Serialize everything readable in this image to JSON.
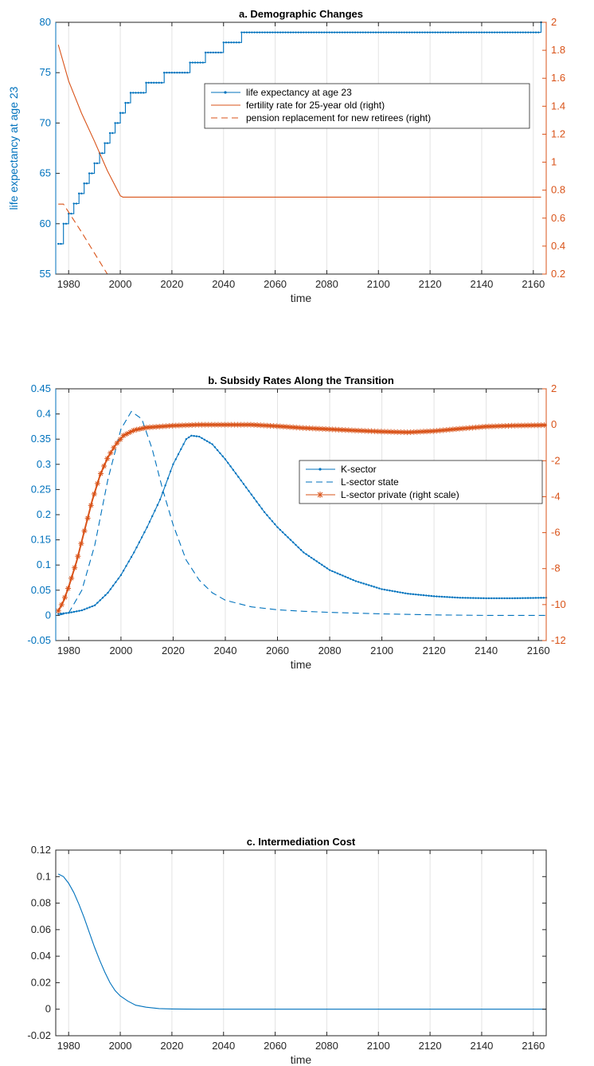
{
  "colors": {
    "blue": "#0072BD",
    "orange": "#D95319",
    "grid": "#e3e3e3",
    "axis": "#262626"
  },
  "chart_data": [
    {
      "type": "line",
      "title": "a. Demographic Changes",
      "xlabel": "time",
      "ylabel": "life expectancy at age 23",
      "ylabel_right": "",
      "xlim": [
        1975,
        2165
      ],
      "ylim": [
        55,
        80
      ],
      "ylim_right": [
        0.2,
        2
      ],
      "xticks": [
        1980,
        2000,
        2020,
        2040,
        2060,
        2080,
        2100,
        2120,
        2140,
        2160
      ],
      "yticks": [
        55,
        60,
        65,
        70,
        75,
        80
      ],
      "yticks_right": [
        0.2,
        0.4,
        0.6,
        0.8,
        1,
        1.2,
        1.4,
        1.6,
        1.8,
        2
      ],
      "grid": "x",
      "legend": "top-right",
      "series": [
        {
          "name": "life expectancy at age 23",
          "axis": "left",
          "style": "solid-dot",
          "color": "blue",
          "x": [
            1976,
            1978,
            1980,
            1982,
            1984,
            1986,
            1988,
            1990,
            1992,
            1994,
            1996,
            1998,
            2000,
            2002,
            2004,
            2010,
            2017,
            2027,
            2033,
            2040,
            2047,
            2163
          ],
          "y": [
            58,
            60,
            61,
            62,
            63,
            64,
            65,
            66,
            67,
            68,
            69,
            70,
            71,
            72,
            73,
            74,
            75,
            76,
            77,
            78,
            79,
            80
          ],
          "step": true
        },
        {
          "name": "fertility rate for 25-year old (right)",
          "axis": "right",
          "style": "solid",
          "color": "orange",
          "x": [
            1976,
            1980,
            1985,
            1990,
            1995,
            2000,
            2001,
            2163
          ],
          "y": [
            1.84,
            1.58,
            1.35,
            1.15,
            0.94,
            0.76,
            0.75,
            0.75
          ]
        },
        {
          "name": "pension replacement for new retirees (right)",
          "axis": "right",
          "style": "dashed",
          "color": "orange",
          "x": [
            1976,
            1978,
            1985,
            1990,
            1995,
            2163
          ],
          "y": [
            0.7,
            0.7,
            0.5,
            0.35,
            0.2,
            0.2
          ]
        }
      ]
    },
    {
      "type": "line",
      "title": "b. Subsidy Rates Along the Transition",
      "xlabel": "time",
      "ylabel": "",
      "xlim": [
        1975,
        2163
      ],
      "ylim": [
        -0.05,
        0.45
      ],
      "ylim_right": [
        -12,
        2
      ],
      "xticks": [
        1980,
        2000,
        2020,
        2040,
        2060,
        2080,
        2100,
        2120,
        2140,
        2160
      ],
      "yticks": [
        -0.05,
        0,
        0.05,
        0.1,
        0.15,
        0.2,
        0.25,
        0.3,
        0.35,
        0.4,
        0.45
      ],
      "yticks_right": [
        -12,
        -10,
        -8,
        -6,
        -4,
        -2,
        0,
        2
      ],
      "grid": "x",
      "legend": "right",
      "series": [
        {
          "name": "K-sector",
          "axis": "left",
          "style": "solid-dot",
          "color": "blue",
          "x": [
            1976,
            1980,
            1985,
            1990,
            1995,
            2000,
            2005,
            2010,
            2015,
            2020,
            2025,
            2027,
            2030,
            2035,
            2040,
            2045,
            2050,
            2055,
            2060,
            2070,
            2080,
            2090,
            2100,
            2110,
            2120,
            2130,
            2140,
            2150,
            2163
          ],
          "y": [
            0.003,
            0.005,
            0.01,
            0.02,
            0.045,
            0.08,
            0.125,
            0.175,
            0.23,
            0.3,
            0.35,
            0.357,
            0.355,
            0.34,
            0.31,
            0.275,
            0.24,
            0.205,
            0.175,
            0.125,
            0.09,
            0.068,
            0.052,
            0.043,
            0.038,
            0.035,
            0.034,
            0.034,
            0.035
          ]
        },
        {
          "name": "L-sector state",
          "axis": "left",
          "style": "dashed",
          "color": "blue",
          "x": [
            1976,
            1980,
            1985,
            1990,
            1995,
            2000,
            2004,
            2008,
            2012,
            2016,
            2020,
            2025,
            2030,
            2035,
            2040,
            2050,
            2060,
            2070,
            2080,
            2100,
            2120,
            2140,
            2163
          ],
          "y": [
            0,
            0.005,
            0.05,
            0.14,
            0.27,
            0.37,
            0.405,
            0.39,
            0.33,
            0.25,
            0.18,
            0.11,
            0.07,
            0.045,
            0.03,
            0.017,
            0.011,
            0.008,
            0.006,
            0.003,
            0.001,
            0,
            0
          ]
        },
        {
          "name": "L-sector private (right scale)",
          "axis": "right",
          "style": "solid-star",
          "color": "orange",
          "x": [
            1976,
            1978,
            1980,
            1983,
            1986,
            1989,
            1992,
            1995,
            1998,
            2001,
            2005,
            2010,
            2020,
            2030,
            2040,
            2050,
            2060,
            2070,
            2080,
            2090,
            2100,
            2110,
            2120,
            2130,
            2140,
            2150,
            2163
          ],
          "y": [
            -10.35,
            -9.8,
            -9.0,
            -7.6,
            -5.9,
            -4.2,
            -2.8,
            -1.8,
            -1.1,
            -0.6,
            -0.3,
            -0.15,
            -0.05,
            0,
            0,
            0,
            -0.08,
            -0.18,
            -0.25,
            -0.32,
            -0.38,
            -0.42,
            -0.35,
            -0.22,
            -0.1,
            -0.05,
            -0.02
          ]
        }
      ]
    },
    {
      "type": "line",
      "title": "c. Intermediation Cost",
      "xlabel": "time",
      "ylabel": "",
      "xlim": [
        1975,
        2165
      ],
      "ylim": [
        -0.02,
        0.12
      ],
      "xticks": [
        1980,
        2000,
        2020,
        2040,
        2060,
        2080,
        2100,
        2120,
        2140,
        2160
      ],
      "yticks": [
        -0.02,
        0,
        0.02,
        0.04,
        0.06,
        0.08,
        0.1,
        0.12
      ],
      "grid": "x",
      "series": [
        {
          "name": "",
          "axis": "left",
          "style": "solid",
          "color": "blue",
          "x": [
            1976,
            1978,
            1980,
            1982,
            1984,
            1986,
            1988,
            1990,
            1992,
            1994,
            1996,
            1998,
            2000,
            2003,
            2006,
            2010,
            2015,
            2020,
            2030,
            2165
          ],
          "y": [
            0.102,
            0.1,
            0.095,
            0.088,
            0.079,
            0.069,
            0.058,
            0.047,
            0.037,
            0.028,
            0.02,
            0.014,
            0.01,
            0.006,
            0.003,
            0.0015,
            0.0005,
            0.0002,
            0,
            0
          ]
        }
      ]
    }
  ]
}
